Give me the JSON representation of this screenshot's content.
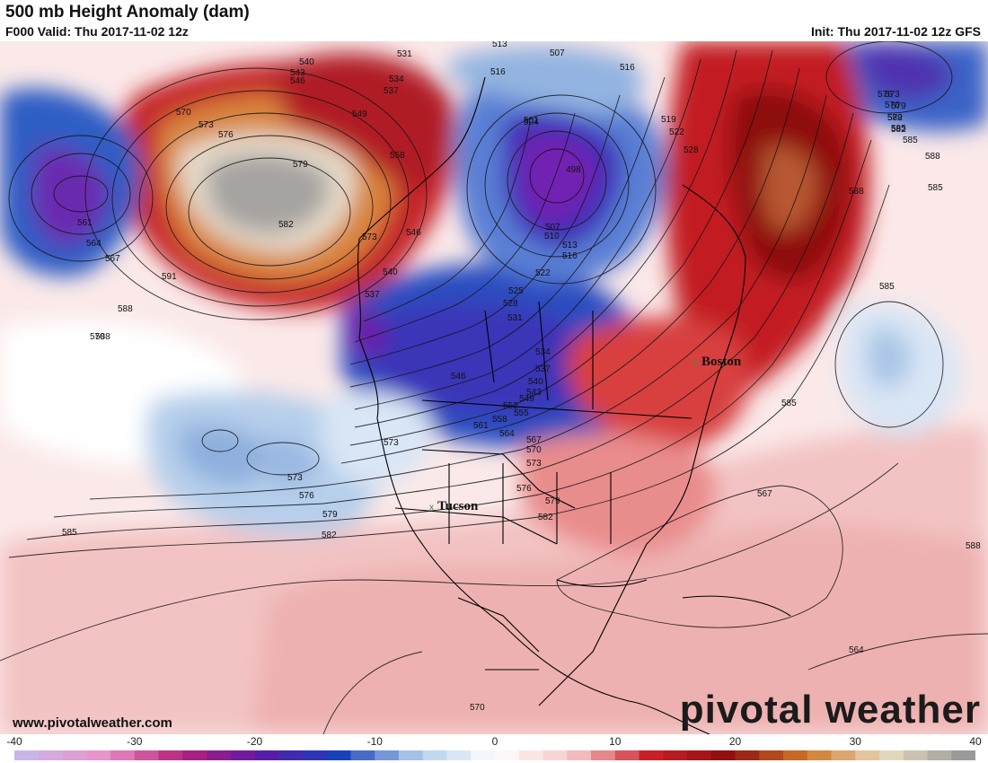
{
  "header": {
    "title": "500 mb Height Anomaly (dam)",
    "valid": "F000 Valid: Thu 2017-11-02 12z",
    "init": "Init: Thu 2017-11-02 12z GFS"
  },
  "footer": {
    "website": "www.pivotalweather.com",
    "brand": "pivotal weather"
  },
  "cities": [
    {
      "name": "Tucson",
      "marker": "x"
    },
    {
      "name": "Boston",
      "marker": "x"
    }
  ],
  "contour_labels": [
    "513",
    "531",
    "516",
    "507",
    "516",
    "519",
    "522",
    "528",
    "540",
    "543",
    "546",
    "534",
    "537",
    "549",
    "558",
    "570",
    "573",
    "576",
    "579",
    "582",
    "561",
    "564",
    "567",
    "546",
    "540",
    "537",
    "504",
    "501",
    "498",
    "507",
    "510",
    "513",
    "516",
    "522",
    "525",
    "528",
    "531",
    "534",
    "537",
    "540",
    "543",
    "546",
    "549",
    "552",
    "555",
    "558",
    "561",
    "564",
    "567",
    "570",
    "573",
    "576",
    "573",
    "579",
    "582",
    "585",
    "573",
    "576",
    "579",
    "582",
    "585",
    "588",
    "591",
    "585",
    "567",
    "570",
    "573",
    "576",
    "579",
    "582",
    "585",
    "588",
    "585",
    "588",
    "588",
    "588",
    "564",
    "570",
    "573",
    "576",
    "579",
    "582",
    "585"
  ],
  "colorbar": {
    "ticks": [
      "-40",
      "-30",
      "-20",
      "-10",
      "0",
      "10",
      "20",
      "30",
      "40"
    ],
    "min": -40,
    "max": 40,
    "step": 2,
    "colors": {
      "neg_deep": "#c9b6e6",
      "neg_pink": "#e893c8",
      "neg_magenta": "#b4227a",
      "neg_purple": "#5c1aa8",
      "neg_blue": "#1a40b8",
      "neg_light": "#aecdea",
      "neutral": "#ffffff",
      "pos_light": "#f6c9c9",
      "pos_red": "#c8202a",
      "pos_dark": "#8c1010",
      "pos_orange": "#d0782a",
      "pos_tan": "#e8dcc0",
      "pos_gray": "#9c9a98"
    }
  }
}
